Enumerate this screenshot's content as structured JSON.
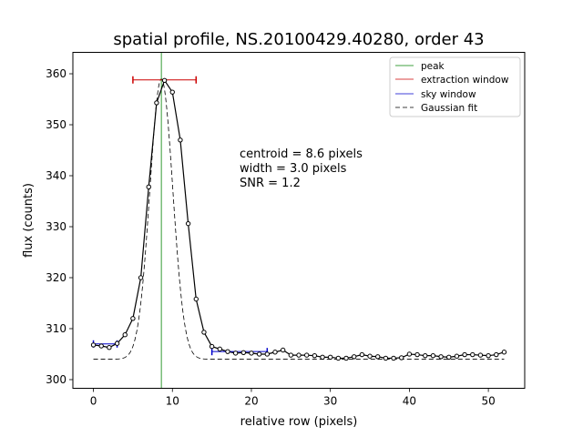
{
  "chart_data": {
    "type": "line",
    "title": "spatial profile, NS.20100429.40280, order 43",
    "xlabel": "relative row (pixels)",
    "ylabel": "flux (counts)",
    "xlim": [
      -2.6,
      54.6
    ],
    "ylim": [
      298.3,
      364.2
    ],
    "xticks": [
      0,
      10,
      20,
      30,
      40,
      50
    ],
    "yticks": [
      300,
      310,
      320,
      330,
      340,
      350,
      360
    ],
    "legend_position": "top-right",
    "legend": [
      "peak",
      "extraction window",
      "sky window",
      "Gaussian fit"
    ],
    "colors": {
      "peak": "#008000",
      "extraction window": "#cc0000",
      "sky window": "#0000cc",
      "profile": "#000000",
      "fit": "#000000"
    },
    "annotations": [
      "centroid = 8.6 pixels",
      "width = 3.0 pixels",
      "SNR = 1.2"
    ],
    "peak_x": 8.6,
    "extraction_window": {
      "x_start": 5,
      "x_end": 13,
      "y": 358.8
    },
    "sky_windows": [
      {
        "x_start": 0,
        "x_end": 3,
        "y": 307.0
      },
      {
        "x_start": 15,
        "x_end": 22,
        "y": 305.5
      }
    ],
    "profile": {
      "x": [
        0,
        1,
        2,
        3,
        4,
        5,
        6,
        7,
        8,
        9,
        10,
        11,
        12,
        13,
        14,
        15,
        16,
        17,
        18,
        19,
        20,
        21,
        22,
        23,
        24,
        25,
        26,
        27,
        28,
        29,
        30,
        31,
        32,
        33,
        34,
        35,
        36,
        37,
        38,
        39,
        40,
        41,
        42,
        43,
        44,
        45,
        46,
        47,
        48,
        49,
        50,
        51,
        52
      ],
      "y": [
        306.8,
        306.6,
        306.3,
        307.1,
        308.8,
        312.0,
        320.0,
        337.8,
        354.3,
        358.7,
        356.4,
        347.0,
        330.6,
        315.8,
        309.3,
        306.5,
        306.0,
        305.5,
        305.2,
        305.3,
        305.2,
        305.0,
        305.0,
        305.4,
        305.8,
        304.8,
        304.8,
        304.8,
        304.7,
        304.4,
        304.4,
        304.2,
        304.2,
        304.5,
        304.9,
        304.6,
        304.5,
        304.2,
        304.2,
        304.3,
        305.0,
        304.9,
        304.7,
        304.7,
        304.5,
        304.4,
        304.6,
        304.9,
        304.9,
        304.8,
        304.7,
        304.9,
        305.4
      ]
    },
    "gaussian_fit": {
      "center": 8.6,
      "sigma": 1.45,
      "amplitude": 55.0,
      "baseline": 304.0
    }
  }
}
